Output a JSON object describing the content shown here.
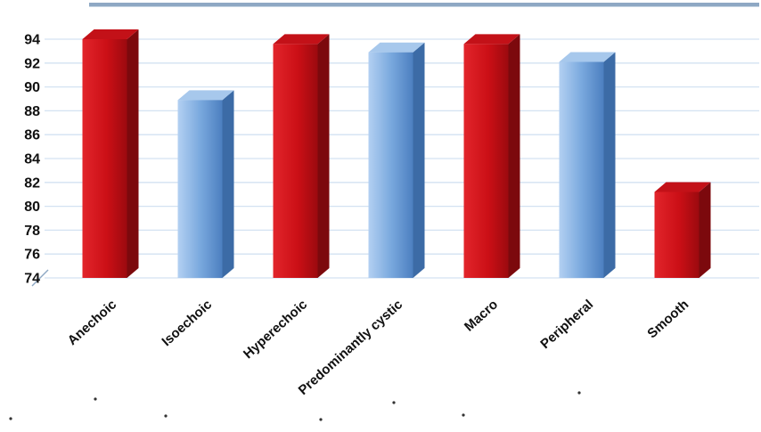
{
  "chart_data": {
    "type": "bar",
    "style": "3d-column",
    "title": "",
    "xlabel": "",
    "ylabel": "",
    "categories": [
      "Anechoic",
      "Isoechoic",
      "Hyperechoic",
      "Predominantly cystic",
      "Macro",
      "Peripheral",
      "Smooth"
    ],
    "values": [
      94,
      88.9,
      93.6,
      92.9,
      93.6,
      92.1,
      81.2
    ],
    "bar_color_pattern": [
      "red",
      "blue",
      "red",
      "blue",
      "red",
      "blue",
      "red"
    ],
    "ylim": [
      74,
      95.5
    ],
    "yticks": [
      74,
      76,
      78,
      80,
      82,
      84,
      86,
      88,
      90,
      92,
      94
    ],
    "grid": true,
    "legend": false,
    "colors": {
      "red_front_light": "#e2252b",
      "red_front": "#cb0f16",
      "red_front_dark": "#9c0a0f",
      "red_side": "#7c090d",
      "red_top": "#c31118",
      "blue_front_light": "#b3d0f2",
      "blue_front": "#7aa9de",
      "blue_front_dark": "#4c7fc0",
      "blue_side": "#3c6ba6",
      "blue_top": "#a7c8ec",
      "gridline": "#d3e2f2",
      "top_border": "#8ea8c4",
      "axis_text": "#111111"
    }
  },
  "stray_marks": [
    [
      107,
      448
    ],
    [
      186,
      467
    ],
    [
      360,
      471
    ],
    [
      442,
      452
    ],
    [
      520,
      466
    ],
    [
      650,
      441
    ],
    [
      12,
      470
    ]
  ]
}
